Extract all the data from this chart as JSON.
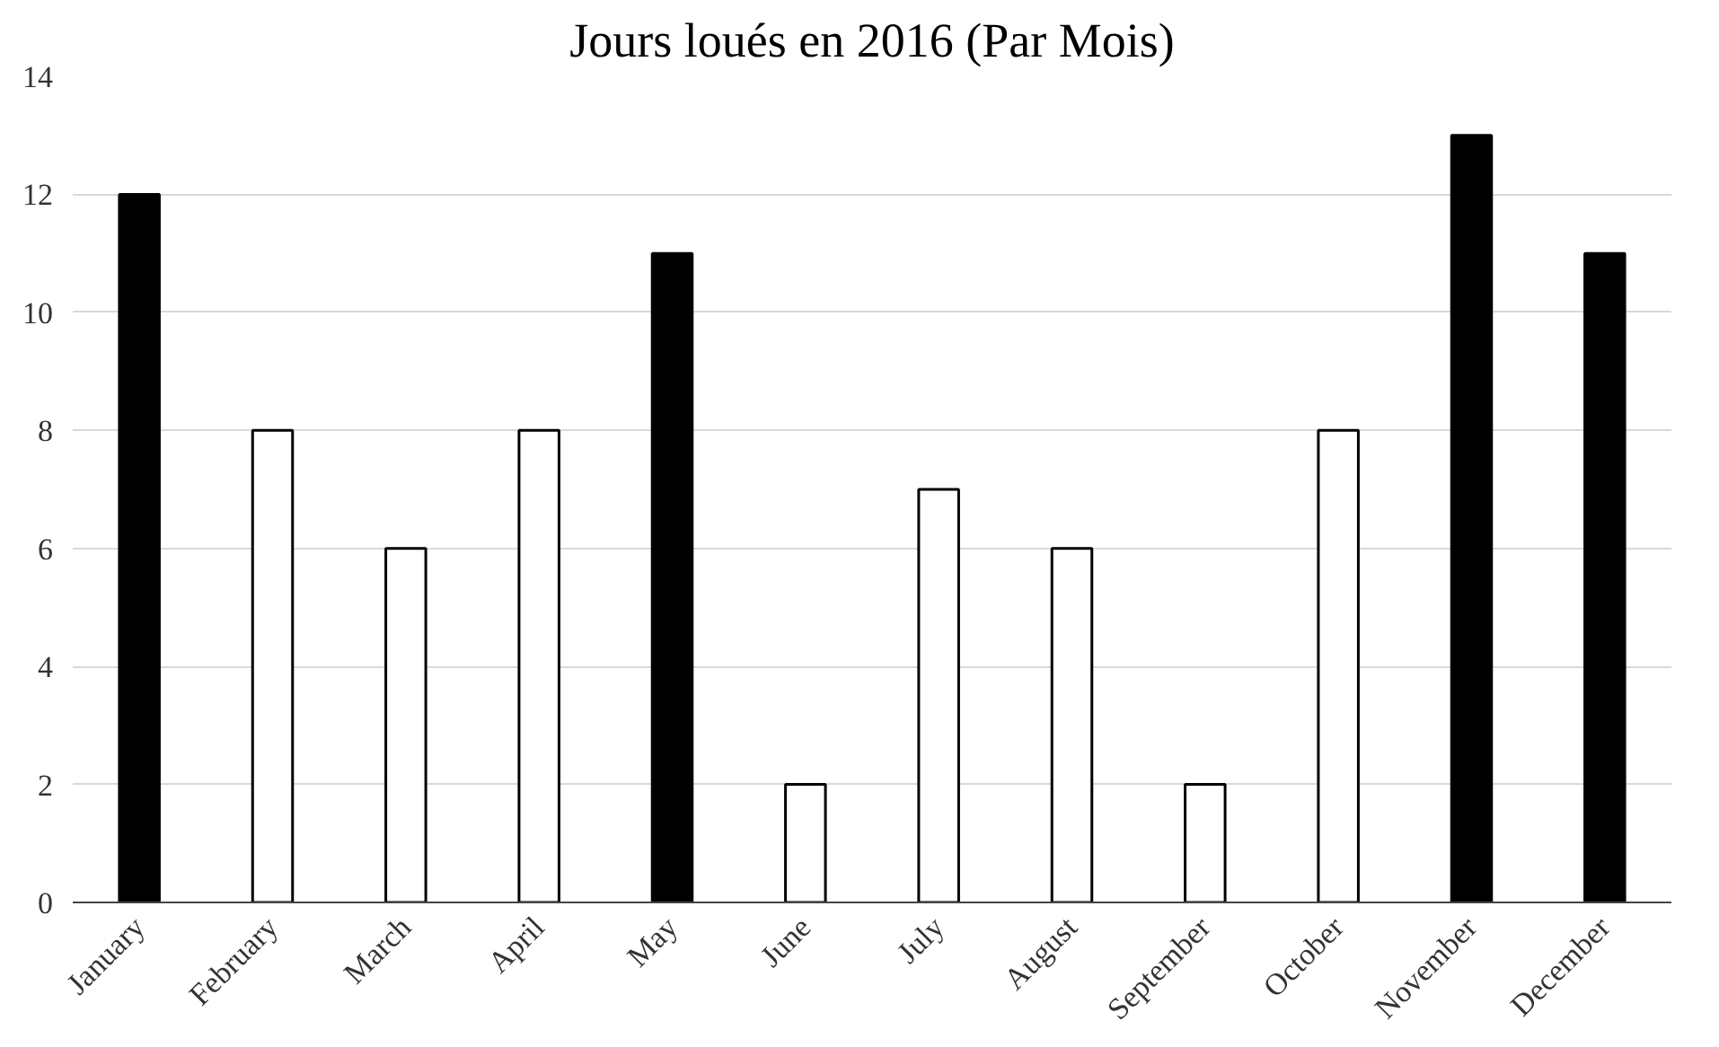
{
  "chart_data": {
    "type": "bar",
    "title": "Jours loués en 2016 (Par Mois)",
    "categories": [
      "January",
      "February",
      "March",
      "April",
      "May",
      "June",
      "July",
      "August",
      "September",
      "October",
      "November",
      "December"
    ],
    "values": [
      12,
      8,
      6,
      8,
      11,
      2,
      7,
      6,
      2,
      8,
      13,
      11
    ],
    "colors": [
      "#000000",
      "#ffffff",
      "#ffffff",
      "#ffffff",
      "#000000",
      "#ffffff",
      "#ffffff",
      "#ffffff",
      "#ffffff",
      "#ffffff",
      "#000000",
      "#000000"
    ],
    "ylim": [
      0,
      14
    ],
    "yticks": [
      0,
      2,
      4,
      6,
      8,
      10,
      12,
      14
    ],
    "grid": "y"
  }
}
